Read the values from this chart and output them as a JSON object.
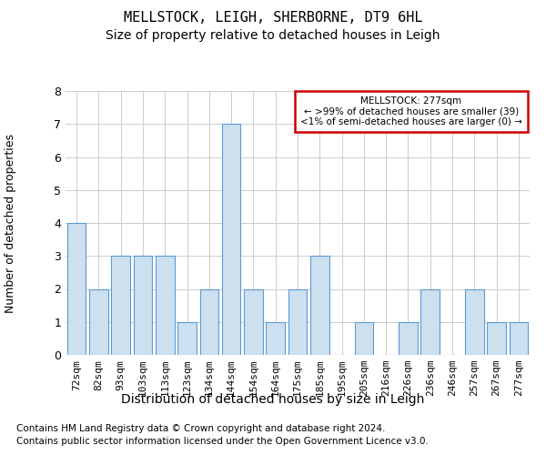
{
  "title": "MELLSTOCK, LEIGH, SHERBORNE, DT9 6HL",
  "subtitle": "Size of property relative to detached houses in Leigh",
  "xlabel": "Distribution of detached houses by size in Leigh",
  "ylabel": "Number of detached properties",
  "categories": [
    "72sqm",
    "82sqm",
    "93sqm",
    "103sqm",
    "113sqm",
    "123sqm",
    "134sqm",
    "144sqm",
    "154sqm",
    "164sqm",
    "175sqm",
    "185sqm",
    "195sqm",
    "205sqm",
    "216sqm",
    "226sqm",
    "236sqm",
    "246sqm",
    "257sqm",
    "267sqm",
    "277sqm"
  ],
  "values": [
    4,
    2,
    3,
    3,
    3,
    1,
    2,
    7,
    2,
    1,
    2,
    3,
    0,
    1,
    0,
    1,
    2,
    0,
    2,
    1,
    1
  ],
  "bar_color": "#cce0f0",
  "bar_edge_color": "#5b9bd5",
  "ylim": [
    0,
    8
  ],
  "yticks": [
    0,
    1,
    2,
    3,
    4,
    5,
    6,
    7,
    8
  ],
  "legend_title": "MELLSTOCK: 277sqm",
  "legend_line1": "← >99% of detached houses are smaller (39)",
  "legend_line2": "<1% of semi-detached houses are larger (0) →",
  "legend_box_edgecolor": "#cc0000",
  "footer_line1": "Contains HM Land Registry data © Crown copyright and database right 2024.",
  "footer_line2": "Contains public sector information licensed under the Open Government Licence v3.0.",
  "background_color": "#ffffff",
  "grid_color": "#cccccc",
  "title_fontsize": 11,
  "subtitle_fontsize": 10,
  "axis_label_fontsize": 10,
  "tick_fontsize": 8,
  "footer_fontsize": 7.5
}
